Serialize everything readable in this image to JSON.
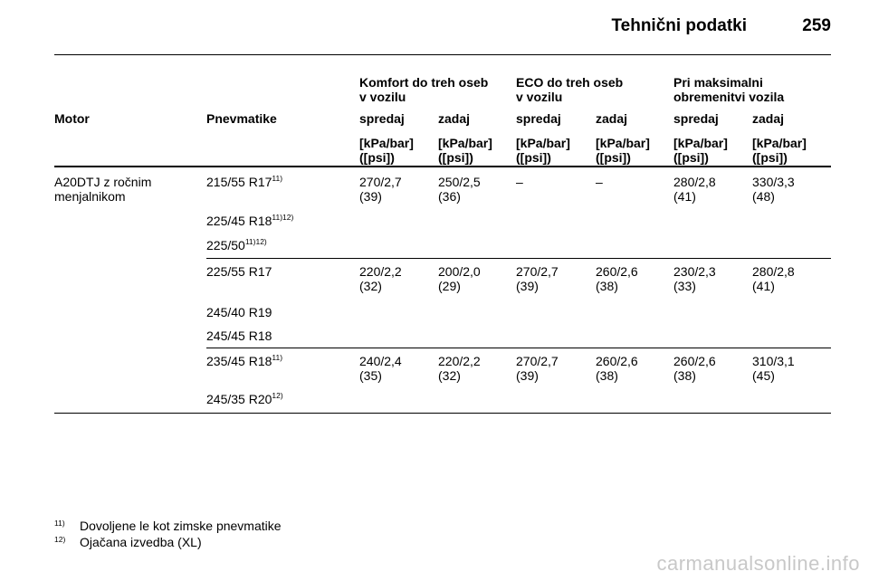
{
  "header": {
    "title": "Tehnični podatki",
    "page_number": "259"
  },
  "table": {
    "groups": [
      {
        "line1": "Komfort do treh oseb",
        "line2": "v vozilu"
      },
      {
        "line1": "ECO do treh oseb",
        "line2": "v vozilu"
      },
      {
        "line1": "Pri maksimalni",
        "line2": "obremenitvi vozila"
      }
    ],
    "col_motor": "Motor",
    "col_tyres": "Pnevmatike",
    "front": "spredaj",
    "rear": "zadaj",
    "unit_line1": "[kPa/bar]",
    "unit_line2": "([psi])",
    "motor_line1": "A20DTJ z ročnim",
    "motor_line2": "menjalnikom",
    "rows": [
      {
        "tyres": [
          {
            "name": "215/55 R17",
            "sup": "11)"
          },
          {
            "name": "225/45 R18",
            "sup": "11)12)"
          },
          {
            "name": "225/50",
            "sup": "11)12)"
          }
        ],
        "values": [
          {
            "a": "270/2,7",
            "b": "(39)"
          },
          {
            "a": "250/2,5",
            "b": "(36)"
          },
          {
            "a": "–",
            "b": ""
          },
          {
            "a": "–",
            "b": ""
          },
          {
            "a": "280/2,8",
            "b": "(41)"
          },
          {
            "a": "330/3,3",
            "b": "(48)"
          }
        ]
      },
      {
        "tyres": [
          {
            "name": "225/55 R17",
            "sup": ""
          },
          {
            "name": "245/40 R19",
            "sup": ""
          },
          {
            "name": "245/45 R18",
            "sup": ""
          }
        ],
        "values": [
          {
            "a": "220/2,2",
            "b": "(32)"
          },
          {
            "a": "200/2,0",
            "b": "(29)"
          },
          {
            "a": "270/2,7",
            "b": "(39)"
          },
          {
            "a": "260/2,6",
            "b": "(38)"
          },
          {
            "a": "230/2,3",
            "b": "(33)"
          },
          {
            "a": "280/2,8",
            "b": "(41)"
          }
        ]
      },
      {
        "tyres": [
          {
            "name": "235/45 R18",
            "sup": "11)"
          },
          {
            "name": "245/35 R20",
            "sup": "12)"
          }
        ],
        "values": [
          {
            "a": "240/2,4",
            "b": "(35)"
          },
          {
            "a": "220/2,2",
            "b": "(32)"
          },
          {
            "a": "270/2,7",
            "b": "(39)"
          },
          {
            "a": "260/2,6",
            "b": "(38)"
          },
          {
            "a": "260/2,6",
            "b": "(38)"
          },
          {
            "a": "310/3,1",
            "b": "(45)"
          }
        ]
      }
    ]
  },
  "footnotes": [
    {
      "num": "11)",
      "text": "Dovoljene le kot zimske pnevmatike"
    },
    {
      "num": "12)",
      "text": "Ojačana izvedba (XL)"
    }
  ],
  "watermark": "carmanualsonline.info"
}
